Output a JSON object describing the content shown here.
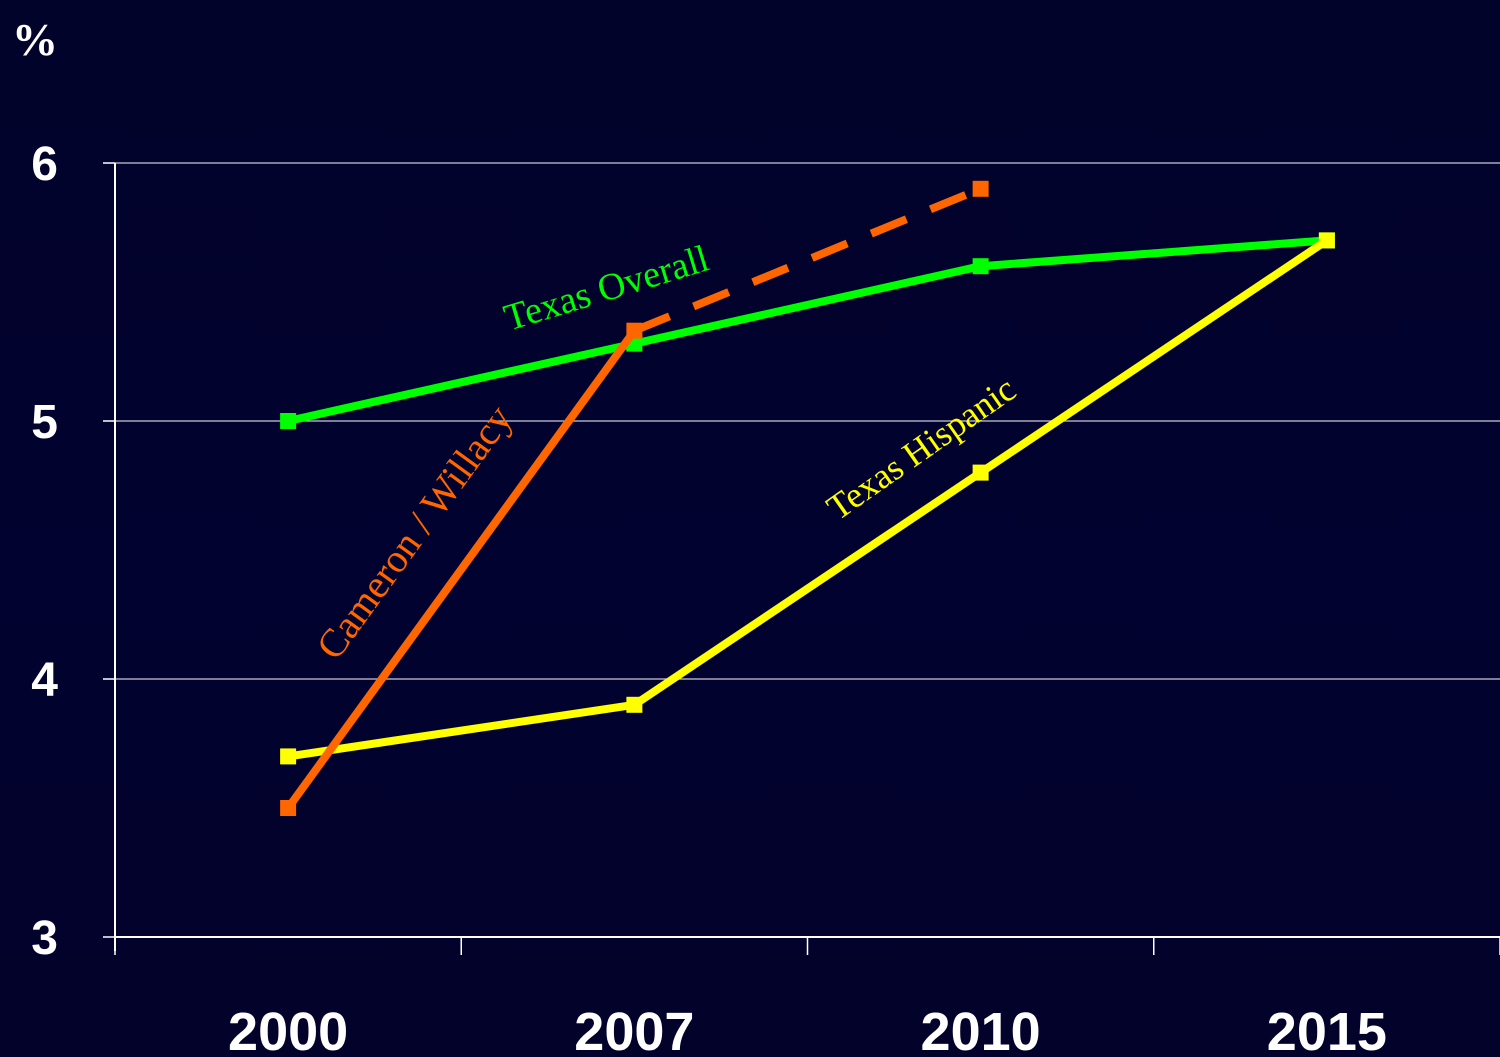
{
  "chart_data": {
    "type": "line",
    "title": "",
    "xlabel": "",
    "ylabel": "%",
    "ylim": [
      3,
      6
    ],
    "y_ticks": [
      "3",
      "4",
      "5",
      "6"
    ],
    "categories": [
      "2000",
      "2007",
      "2010",
      "2015"
    ],
    "grid": true,
    "series": [
      {
        "name": "Texas Overall",
        "color": "#00ff00",
        "values": [
          5.0,
          5.3,
          5.6,
          5.7
        ]
      },
      {
        "name": "Texas Hispanic",
        "color": "#ffff00",
        "values": [
          3.7,
          3.9,
          4.8,
          5.7
        ]
      },
      {
        "name": "Cameron / Willacy",
        "color": "#ff6600",
        "values": [
          3.5,
          5.35,
          5.9,
          null
        ],
        "projected_from": "2007"
      }
    ]
  }
}
